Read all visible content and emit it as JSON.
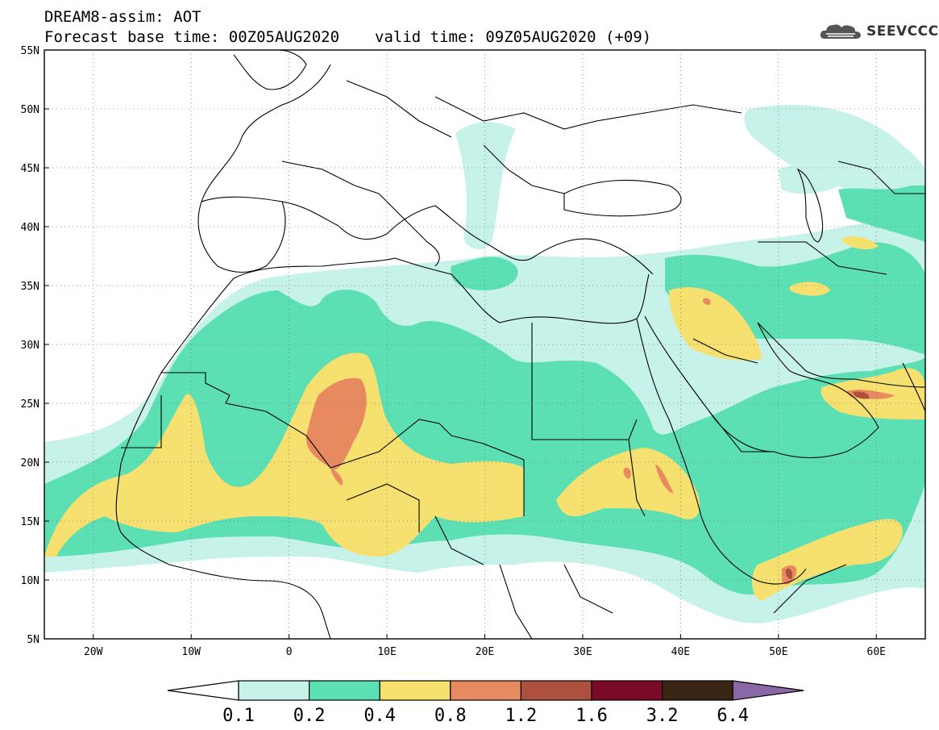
{
  "header": {
    "title": "DREAM8-assim: AOT",
    "base_time": "Forecast base time: 00Z05AUG2020",
    "valid_time": "valid time: 09Z05AUG2020 (+09)"
  },
  "logo": {
    "text": "SEEVCCC",
    "icon": "cloud-logo-icon"
  },
  "map": {
    "lon_range": [
      -25,
      65
    ],
    "lat_range": [
      5,
      55
    ],
    "lat_labels": [
      "55N",
      "50N",
      "45N",
      "40N",
      "35N",
      "30N",
      "25N",
      "20N",
      "15N",
      "10N",
      "5N"
    ],
    "lon_labels": [
      "20W",
      "10W",
      "0",
      "10E",
      "20E",
      "30E",
      "40E",
      "50E",
      "60E"
    ],
    "gridlines": "dotted"
  },
  "colorbar": {
    "labels": [
      "0.1",
      "0.2",
      "0.4",
      "0.8",
      "1.2",
      "1.6",
      "3.2",
      "6.4"
    ],
    "colors": [
      "#c6f2ea",
      "#5ddfb4",
      "#f5e070",
      "#e88a60",
      "#ad5040",
      "#7a0a28",
      "#3a2414",
      "#8a68a8"
    ]
  }
}
